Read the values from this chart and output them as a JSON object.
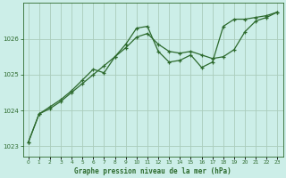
{
  "title": "Graphe pression niveau de la mer (hPa)",
  "background_color": "#cceee8",
  "grid_color": "#aaccbb",
  "line_color": "#2d6a2d",
  "marker_color": "#2d6a2d",
  "xlim": [
    -0.5,
    23.5
  ],
  "ylim": [
    1022.7,
    1027.0
  ],
  "yticks": [
    1023,
    1024,
    1025,
    1026
  ],
  "xtick_labels": [
    "0",
    "1",
    "2",
    "3",
    "4",
    "5",
    "6",
    "7",
    "8",
    "9",
    "10",
    "11",
    "12",
    "13",
    "14",
    "15",
    "16",
    "17",
    "18",
    "19",
    "20",
    "21",
    "22",
    "23"
  ],
  "series1_x": [
    0,
    1,
    2,
    3,
    4,
    5,
    6,
    7,
    8,
    9,
    10,
    11,
    12,
    13,
    14,
    15,
    16,
    17,
    18,
    19,
    20,
    21,
    22,
    23
  ],
  "series1_y": [
    1023.1,
    1023.9,
    1024.05,
    1024.25,
    1024.5,
    1024.75,
    1025.0,
    1025.25,
    1025.5,
    1025.75,
    1026.05,
    1026.15,
    1025.85,
    1025.65,
    1025.6,
    1025.65,
    1025.55,
    1025.45,
    1025.5,
    1025.7,
    1026.2,
    1026.5,
    1026.6,
    1026.75
  ],
  "series2_x": [
    0,
    1,
    2,
    3,
    4,
    5,
    6,
    7,
    8,
    9,
    10,
    11,
    12,
    13,
    14,
    15,
    16,
    17,
    18,
    19,
    20,
    21,
    22,
    23
  ],
  "series2_y": [
    1023.1,
    1023.9,
    1024.1,
    1024.3,
    1024.55,
    1024.85,
    1025.15,
    1025.05,
    1025.5,
    1025.85,
    1026.3,
    1026.35,
    1025.65,
    1025.35,
    1025.4,
    1025.55,
    1025.2,
    1025.35,
    1026.35,
    1026.55,
    1026.55,
    1026.6,
    1026.65,
    1026.75
  ]
}
